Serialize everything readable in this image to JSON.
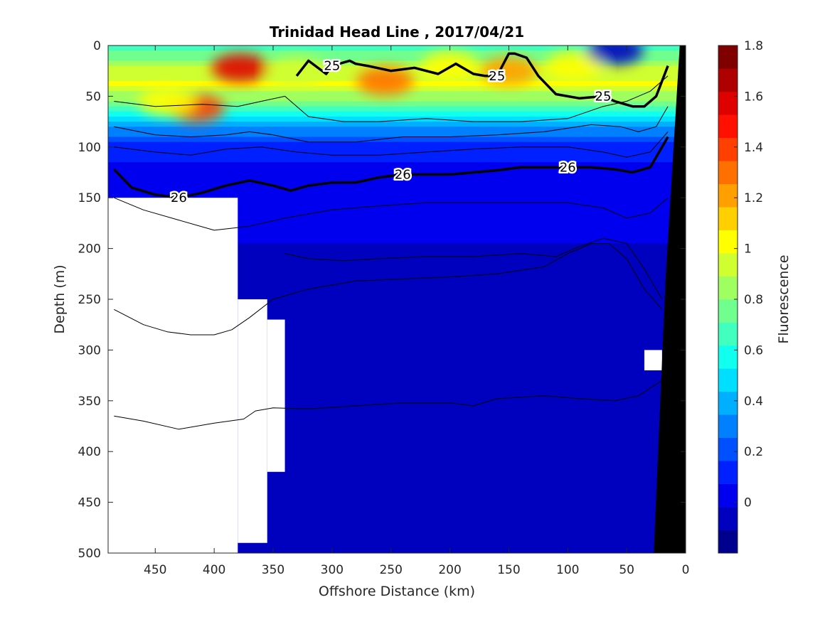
{
  "chart_data": {
    "type": "heatmap",
    "title": "Trinidad Head Line , 2017/04/21",
    "xlabel": "Offshore Distance (km)",
    "ylabel": "Depth (m)",
    "colorbar_label": "Fluorescence",
    "xlim": [
      490,
      0
    ],
    "ylim": [
      0,
      500
    ],
    "x_reversed": true,
    "y_reversed": true,
    "x_ticks": [
      "450",
      "400",
      "350",
      "300",
      "250",
      "200",
      "150",
      "100",
      "50",
      "0"
    ],
    "y_ticks": [
      "0",
      "50",
      "100",
      "150",
      "200",
      "250",
      "300",
      "350",
      "400",
      "450",
      "500"
    ],
    "colorbar": {
      "clim": [
        -0.2,
        1.8
      ],
      "tick_values": [
        0,
        0.2,
        0.4,
        0.6,
        0.8,
        1,
        1.2,
        1.4,
        1.6,
        1.8
      ],
      "tick_labels": [
        "0",
        "0.2",
        "0.4",
        "0.6",
        "0.8",
        "1",
        "1.2",
        "1.4",
        "1.6",
        "1.8"
      ],
      "colors": [
        "#00008f",
        "#0000bf",
        "#0000ef",
        "#0020ff",
        "#0050ff",
        "#0080ff",
        "#00afff",
        "#00dfff",
        "#10ffef",
        "#40ffbf",
        "#70ff8f",
        "#9fff60",
        "#cfff30",
        "#ffff00",
        "#ffcf00",
        "#ff9f00",
        "#ff7000",
        "#ff4000",
        "#ff1000",
        "#df0000",
        "#af0000",
        "#800000"
      ]
    },
    "fluorescence_profile": {
      "depth": [
        0,
        20,
        40,
        60,
        80,
        100,
        120,
        150,
        200,
        500
      ],
      "value": [
        0.6,
        0.9,
        1.0,
        0.7,
        0.35,
        0.12,
        0.06,
        0.0,
        -0.02,
        -0.02
      ]
    },
    "chlorophyll_patches": [
      {
        "x": 378,
        "y": 22,
        "value": 1.55
      },
      {
        "x": 415,
        "y": 62,
        "value": 1.4
      },
      {
        "x": 440,
        "y": 55,
        "value": 1.0
      },
      {
        "x": 255,
        "y": 35,
        "value": 1.3
      },
      {
        "x": 150,
        "y": 25,
        "value": 1.25
      },
      {
        "x": 200,
        "y": 20,
        "value": 1.0
      },
      {
        "x": 95,
        "y": 20,
        "value": 1.05
      },
      {
        "x": 330,
        "y": 25,
        "value": 0.95
      },
      {
        "x": 60,
        "y": 5,
        "value": -0.05
      }
    ],
    "missing_regions": [
      {
        "x0": 490,
        "x1": 380,
        "y0": 150,
        "y1": 500
      },
      {
        "x0": 380,
        "x1": 355,
        "y0": 250,
        "y1": 490
      },
      {
        "x0": 355,
        "x1": 340,
        "y0": 270,
        "y1": 420
      },
      {
        "x0": 35,
        "x1": 20,
        "y0": 300,
        "y1": 320
      }
    ],
    "bathymetry_polygon": [
      [
        0,
        0
      ],
      [
        0,
        500
      ],
      [
        27,
        500
      ],
      [
        17,
        230
      ],
      [
        5,
        0
      ]
    ],
    "density_contours": [
      {
        "level": "25",
        "bold": true,
        "x": [
          330,
          320,
          305,
          300,
          285,
          280,
          270,
          250,
          230,
          210,
          195,
          180,
          170,
          160,
          150,
          145,
          135,
          125,
          110,
          90,
          70,
          60,
          45,
          35,
          25,
          15
        ],
        "y": [
          30,
          15,
          28,
          20,
          15,
          18,
          20,
          25,
          22,
          28,
          18,
          28,
          30,
          30,
          8,
          8,
          12,
          30,
          48,
          52,
          50,
          55,
          60,
          60,
          50,
          20
        ]
      },
      {
        "level": "26",
        "bold": true,
        "x": [
          485,
          470,
          450,
          430,
          410,
          390,
          370,
          350,
          335,
          320,
          300,
          280,
          260,
          240,
          220,
          200,
          180,
          160,
          140,
          120,
          100,
          80,
          60,
          45,
          30,
          15
        ],
        "y": [
          122,
          140,
          147,
          150,
          145,
          138,
          133,
          138,
          143,
          138,
          135,
          135,
          130,
          127,
          127,
          127,
          125,
          123,
          120,
          120,
          120,
          120,
          122,
          125,
          120,
          90
        ]
      },
      {
        "level": "",
        "bold": false,
        "x": [
          485,
          450,
          410,
          380,
          360,
          340,
          320,
          290,
          260,
          220,
          180,
          140,
          100,
          70,
          50,
          30,
          15
        ],
        "y": [
          55,
          60,
          58,
          60,
          55,
          50,
          70,
          75,
          75,
          72,
          75,
          75,
          72,
          60,
          55,
          45,
          30
        ]
      },
      {
        "level": "",
        "bold": false,
        "x": [
          485,
          450,
          420,
          390,
          370,
          350,
          320,
          280,
          240,
          200,
          160,
          120,
          80,
          55,
          40,
          25,
          15
        ],
        "y": [
          80,
          88,
          90,
          88,
          85,
          88,
          95,
          95,
          90,
          90,
          88,
          85,
          78,
          80,
          85,
          80,
          60
        ]
      },
      {
        "level": "",
        "bold": false,
        "x": [
          485,
          450,
          420,
          390,
          360,
          330,
          300,
          260,
          220,
          180,
          140,
          100,
          70,
          50,
          30,
          15
        ],
        "y": [
          100,
          105,
          108,
          102,
          100,
          105,
          108,
          108,
          105,
          102,
          100,
          100,
          105,
          110,
          105,
          85
        ]
      },
      {
        "level": "",
        "bold": false,
        "x": [
          485,
          460,
          430,
          400,
          370,
          340,
          300,
          260,
          220,
          180,
          140,
          100,
          70,
          50,
          30,
          15
        ],
        "y": [
          150,
          162,
          172,
          182,
          178,
          170,
          162,
          158,
          155,
          155,
          155,
          155,
          160,
          170,
          165,
          150
        ]
      },
      {
        "level": "",
        "bold": false,
        "x": [
          340,
          320,
          290,
          260,
          220,
          180,
          140,
          110,
          90,
          70,
          50,
          35,
          20
        ],
        "y": [
          205,
          210,
          212,
          210,
          208,
          208,
          205,
          208,
          198,
          190,
          195,
          220,
          250
        ]
      },
      {
        "level": "",
        "bold": false,
        "x": [
          485,
          460,
          440,
          420,
          400,
          385,
          370,
          350,
          320,
          280,
          240,
          200,
          160,
          120,
          100,
          80,
          65,
          50,
          35,
          20
        ],
        "y": [
          260,
          275,
          282,
          285,
          285,
          280,
          268,
          250,
          240,
          232,
          230,
          228,
          225,
          218,
          205,
          195,
          195,
          210,
          240,
          260
        ]
      },
      {
        "level": "",
        "bold": false,
        "x": [
          485,
          460,
          430,
          400,
          375,
          365,
          350,
          320,
          280,
          240,
          200,
          180,
          160,
          120,
          90,
          60,
          40,
          20
        ],
        "y": [
          365,
          370,
          378,
          372,
          368,
          360,
          357,
          358,
          355,
          352,
          352,
          355,
          348,
          345,
          348,
          350,
          345,
          330
        ]
      }
    ]
  }
}
